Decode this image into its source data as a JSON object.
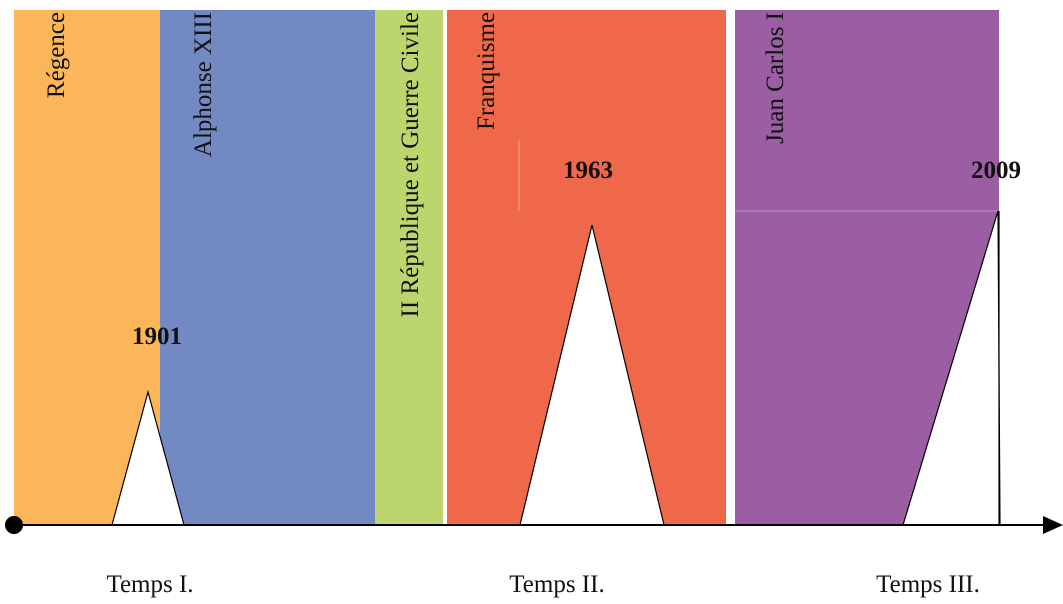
{
  "periods": [
    {
      "label": "Régence",
      "color": "#fbb65a"
    },
    {
      "label": "Alphonse XIII",
      "color": "#7389c4"
    },
    {
      "label": "II République et Guerre Civile",
      "color": "#bcd66d"
    },
    {
      "label": "Franquisme",
      "color": "#f0684a"
    },
    {
      "label": "Juan Carlos I",
      "color": "#9c5ea2"
    }
  ],
  "years": [
    "1901",
    "1963",
    "2009"
  ],
  "times": [
    "Temps I.",
    "Temps II.",
    "Temps III."
  ]
}
